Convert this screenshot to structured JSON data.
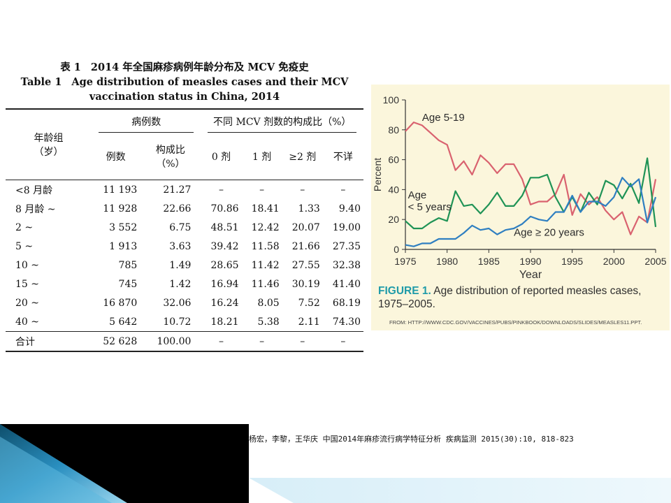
{
  "table": {
    "title_cn_label": "表 1",
    "title_cn": "2014 年全国麻疹病例年龄分布及 MCV 免疫史",
    "title_en_label": "Table 1",
    "title_en_line1": "Age distribution of measles cases and their MCV",
    "title_en_line2": "vaccination status in China, 2014",
    "headers": {
      "age_group": "年龄组\n（岁）",
      "cases_group": "病例数",
      "mcv_group": "不同 MCV 剂数的构成比（%）",
      "count": "例数",
      "percent": "构成比\n（%）",
      "dose0": "0 剂",
      "dose1": "1 剂",
      "dose2": "≥2 剂",
      "unknown": "不详"
    },
    "rows": [
      [
        "<8 月龄",
        "11 193",
        "21.27",
        "–",
        "–",
        "–",
        "–"
      ],
      [
        "8 月龄 ~",
        "11 928",
        "22.66",
        "70.86",
        "18.41",
        "1.33",
        "9.40"
      ],
      [
        "2 ~",
        "3 552",
        "6.75",
        "48.51",
        "12.42",
        "20.07",
        "19.00"
      ],
      [
        "5 ~",
        "1 913",
        "3.63",
        "39.42",
        "11.58",
        "21.66",
        "27.35"
      ],
      [
        "10 ~",
        "785",
        "1.49",
        "28.65",
        "11.42",
        "27.55",
        "32.38"
      ],
      [
        "15 ~",
        "745",
        "1.42",
        "16.94",
        "11.46",
        "30.19",
        "41.40"
      ],
      [
        "20 ~",
        "16 870",
        "32.06",
        "16.24",
        "8.05",
        "7.52",
        "68.19"
      ],
      [
        "40 ~",
        "5 642",
        "10.72",
        "18.21",
        "5.38",
        "2.11",
        "74.30"
      ]
    ],
    "total": [
      "合计",
      "52 628",
      "100.00",
      "–",
      "–",
      "–",
      "–"
    ]
  },
  "figure": {
    "caption_label": "FIGURE 1.",
    "caption_text": "Age distribution of reported measles cases, 1975–2005.",
    "source": "FROM: HTTP://WWW.CDC.GOV/VACCINES/PUBS/PINKBOOK/DOWNLOADS/SLIDES/MEASLES11.PPT."
  },
  "chart_data": {
    "type": "line",
    "xlabel": "Year",
    "ylabel": "Percent",
    "xlim": [
      1975,
      2005
    ],
    "ylim": [
      0,
      100
    ],
    "xticks": [
      1975,
      1980,
      1985,
      1990,
      1995,
      2000,
      2005
    ],
    "yticks": [
      0,
      20,
      40,
      60,
      80,
      100
    ],
    "grid": false,
    "series": [
      {
        "name": "Age 5-19",
        "color": "#d9626f",
        "label_at": [
          1977,
          86
        ],
        "x": [
          1975,
          1976,
          1977,
          1978,
          1979,
          1980,
          1981,
          1982,
          1983,
          1984,
          1985,
          1986,
          1987,
          1988,
          1989,
          1990,
          1991,
          1992,
          1993,
          1994,
          1995,
          1996,
          1997,
          1998,
          1999,
          2000,
          2001,
          2002,
          2003,
          2004,
          2005
        ],
        "y": [
          79,
          85,
          83,
          78,
          73,
          70,
          53,
          59,
          50,
          63,
          58,
          51,
          57,
          57,
          47,
          30,
          32,
          32,
          37,
          50,
          23,
          37,
          30,
          35,
          26,
          20,
          25,
          10,
          22,
          18,
          47
        ]
      },
      {
        "name": "Age\n< 5 years",
        "color": "#1f9356",
        "label_at": [
          1975.3,
          34
        ],
        "x": [
          1975,
          1976,
          1977,
          1978,
          1979,
          1980,
          1981,
          1982,
          1983,
          1984,
          1985,
          1986,
          1987,
          1988,
          1989,
          1990,
          1991,
          1992,
          1993,
          1994,
          1995,
          1996,
          1997,
          1998,
          1999,
          2000,
          2001,
          2002,
          2003,
          2004,
          2005
        ],
        "y": [
          19,
          14,
          14,
          18,
          21,
          19,
          39,
          29,
          30,
          24,
          30,
          38,
          29,
          29,
          36,
          48,
          48,
          50,
          35,
          25,
          35,
          25,
          38,
          30,
          46,
          43,
          34,
          44,
          31,
          61,
          15
        ]
      },
      {
        "name": "Age ≥ 20 years",
        "color": "#2f7fc1",
        "label_at": [
          1988,
          9
        ],
        "x": [
          1975,
          1976,
          1977,
          1978,
          1979,
          1980,
          1981,
          1982,
          1983,
          1984,
          1985,
          1986,
          1987,
          1988,
          1989,
          1990,
          1991,
          1992,
          1993,
          1994,
          1995,
          1996,
          1997,
          1998,
          1999,
          2000,
          2001,
          2002,
          2003,
          2004,
          2005
        ],
        "y": [
          3,
          2,
          4,
          4,
          7,
          7,
          7,
          11,
          16,
          13,
          14,
          10,
          13,
          14,
          17,
          22,
          20,
          19,
          25,
          25,
          36,
          25,
          32,
          32,
          29,
          35,
          48,
          42,
          47,
          18,
          35
        ]
      }
    ]
  },
  "citation": "杨宏，李黎，王华庆 中国2014年麻疹流行病学特征分析 疾病监测 2015(30):10, 818-823",
  "theme": {
    "blue_dark": "#15607f",
    "blue_mid": "#2a8fc0",
    "blue_light": "#8ccde8",
    "frame_black": "#000000"
  }
}
